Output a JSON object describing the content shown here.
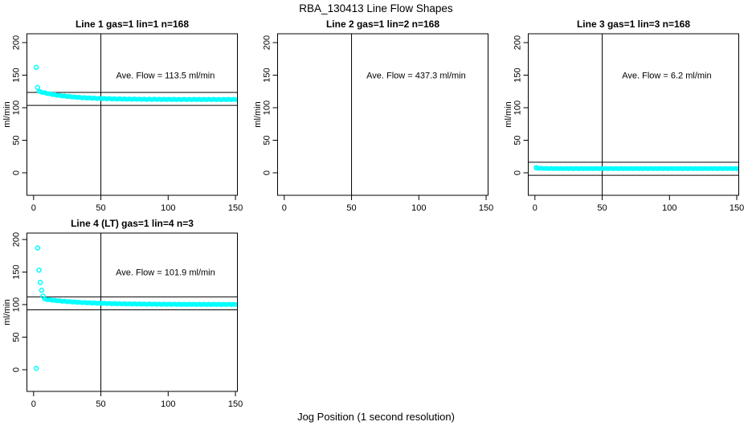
{
  "page": {
    "title": "RBA_130413  Line Flow Shapes",
    "xlabel": "Jog Position (1 second resolution)"
  },
  "chart_data": [
    {
      "type": "scatter",
      "title": "Line 1 gas=1 lin=1 n=168",
      "annotation": "Ave. Flow =  113.5  ml/min",
      "ave_flow_ml_min": 113.5,
      "n": 168,
      "ylabel": "ml/min",
      "x_ticks": [
        0,
        50,
        100,
        150
      ],
      "y_ticks": [
        0,
        50,
        100,
        150,
        200
      ],
      "xlim": [
        -5,
        152
      ],
      "ylim": [
        -35,
        214
      ],
      "vline_x": 50,
      "hlines_y": [
        123.5,
        103.5
      ],
      "marker_color": "#00ffff",
      "line_color": "#000000",
      "outliers": [
        [
          2,
          162
        ],
        [
          3,
          131
        ]
      ],
      "band": {
        "x_from": 4,
        "x_to": 150,
        "y_start": 125.0,
        "y_end": 112.6,
        "tau": 22,
        "wobble": 0.5
      },
      "grid": {
        "row": 0,
        "col": 0
      }
    },
    {
      "type": "scatter",
      "title": "Line 2 gas=1 lin=2 n=168",
      "annotation": "Ave. Flow =  437.3  ml/min",
      "ave_flow_ml_min": 437.3,
      "n": 168,
      "ylabel": "ml/min",
      "x_ticks": [
        0,
        50,
        100,
        150
      ],
      "y_ticks": [
        0,
        50,
        100,
        150,
        200
      ],
      "xlim": [
        -5,
        152
      ],
      "ylim": [
        -35,
        214
      ],
      "vline_x": 50,
      "hlines_y": [],
      "marker_color": "#00ffff",
      "line_color": "#000000",
      "outliers": [],
      "band": null,
      "points_above_ylim": true,
      "grid": {
        "row": 0,
        "col": 1
      }
    },
    {
      "type": "scatter",
      "title": "Line 3 gas=1 lin=3 n=168",
      "annotation": "Ave. Flow =  6.2  ml/min",
      "ave_flow_ml_min": 6.2,
      "n": 168,
      "ylabel": "ml/min",
      "x_ticks": [
        0,
        50,
        100,
        150
      ],
      "y_ticks": [
        0,
        50,
        100,
        150,
        200
      ],
      "xlim": [
        -5,
        152
      ],
      "ylim": [
        -35,
        214
      ],
      "vline_x": 50,
      "hlines_y": [
        16.2,
        -3.8
      ],
      "marker_color": "#00ffff",
      "line_color": "#000000",
      "outliers": [
        [
          1,
          7.8
        ]
      ],
      "band": {
        "x_from": 1,
        "x_to": 151,
        "y_start": 7.4,
        "y_end": 6.5,
        "tau": 5,
        "wobble": 0.3
      },
      "grid": {
        "row": 0,
        "col": 2
      }
    },
    {
      "type": "scatter",
      "title": "Line 4 (LT) gas=1 lin=4 n=3",
      "annotation": "Ave. Flow =  101.9  ml/min",
      "ave_flow_ml_min": 101.9,
      "n": 3,
      "ylabel": "ml/min",
      "x_ticks": [
        0,
        50,
        100,
        150
      ],
      "y_ticks": [
        0,
        50,
        100,
        150,
        200
      ],
      "xlim": [
        -5,
        152
      ],
      "ylim": [
        -35,
        214
      ],
      "vline_x": 50,
      "hlines_y": [
        111.9,
        91.9
      ],
      "marker_color": "#00ffff",
      "line_color": "#000000",
      "outliers": [
        [
          2,
          2
        ],
        [
          3,
          187
        ],
        [
          4,
          153
        ],
        [
          5,
          134
        ],
        [
          6,
          122
        ],
        [
          7,
          113
        ]
      ],
      "band": {
        "x_from": 8,
        "x_to": 150,
        "y_start": 108.5,
        "y_end": 100.2,
        "tau": 28,
        "wobble": 0.5
      },
      "grid": {
        "row": 1,
        "col": 0
      }
    }
  ]
}
